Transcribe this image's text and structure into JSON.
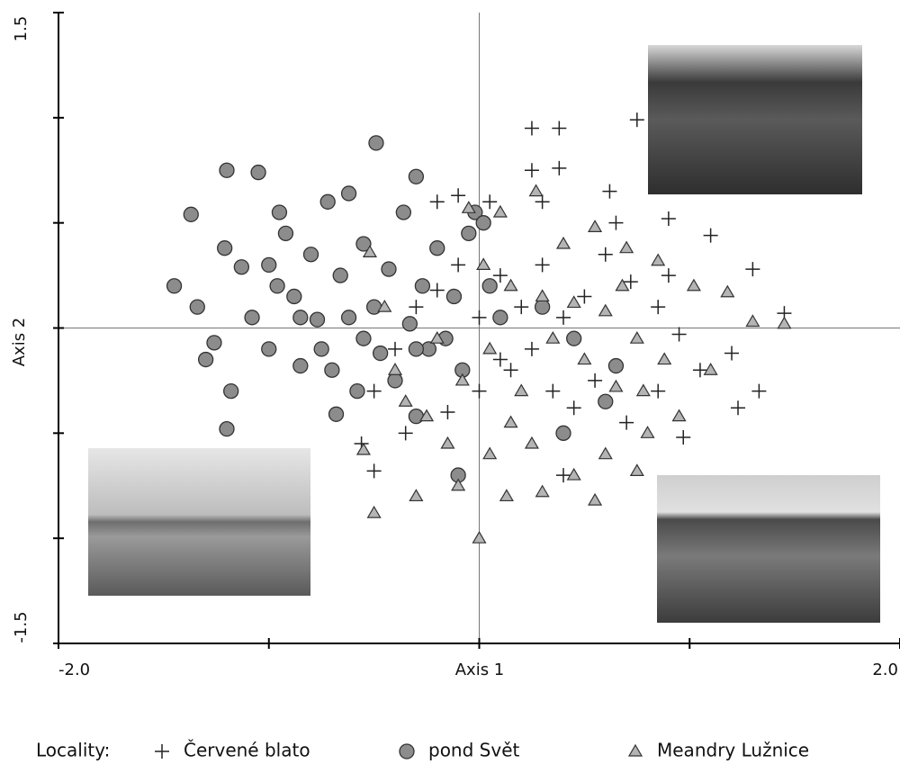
{
  "chart_data": {
    "type": "scatter",
    "x_label": "Axis 1",
    "y_label": "Axis 2",
    "legend_title": "Locality:",
    "xlim": [
      -2.0,
      2.0
    ],
    "ylim": [
      -1.5,
      1.5
    ],
    "xticks": [
      {
        "value": -2.0,
        "label": "-2.0"
      },
      {
        "value": 2.0,
        "label": "2.0"
      }
    ],
    "yticks": [
      {
        "value": -1.5,
        "label": "-1.5"
      },
      {
        "value": 1.5,
        "label": "1.5"
      }
    ],
    "xminor_ticks": [
      -1,
      0,
      1
    ],
    "yminor_ticks": [
      -1,
      -0.5,
      0,
      0.5,
      1
    ],
    "series": [
      {
        "name": "Červené blato",
        "marker": "plus",
        "color": "#222222",
        "x": [
          0.25,
          0.38,
          0.75,
          0.25,
          0.38,
          0.62,
          -0.2,
          -0.1,
          0.05,
          0.3,
          0.65,
          0.9,
          1.1,
          1.3,
          1.45,
          1.2,
          1.33,
          1.23,
          1.05,
          0.95,
          0.85,
          0.72,
          0.6,
          0.5,
          0.4,
          0.3,
          0.2,
          0.1,
          0.0,
          -0.1,
          -0.2,
          -0.3,
          -0.4,
          -0.5,
          -0.56,
          -0.5,
          -0.35,
          -0.15,
          0.0,
          0.15,
          0.25,
          0.35,
          0.45,
          0.55,
          0.7,
          0.85,
          0.97,
          0.9,
          0.4,
          0.1
        ],
        "y": [
          0.95,
          0.95,
          0.99,
          0.75,
          0.76,
          0.65,
          0.6,
          0.63,
          0.6,
          0.6,
          0.5,
          0.52,
          0.44,
          0.28,
          0.07,
          -0.12,
          -0.3,
          -0.38,
          -0.2,
          -0.03,
          0.1,
          0.22,
          0.35,
          0.15,
          0.05,
          0.3,
          0.1,
          0.25,
          0.05,
          0.3,
          0.18,
          0.1,
          -0.1,
          -0.3,
          -0.55,
          -0.68,
          -0.5,
          -0.4,
          -0.3,
          -0.2,
          -0.1,
          -0.3,
          -0.38,
          -0.25,
          -0.45,
          -0.3,
          -0.52,
          0.25,
          -0.7,
          -0.15
        ]
      },
      {
        "name": "pond Svět",
        "marker": "circle",
        "color": "#8c8c8c",
        "x": [
          -1.45,
          -1.37,
          -1.2,
          -1.05,
          -0.49,
          -0.3,
          -1.34,
          -1.3,
          -1.26,
          -1.21,
          -1.13,
          -1.08,
          -1.0,
          -0.96,
          -0.92,
          -0.88,
          -0.85,
          -0.8,
          -0.77,
          -0.72,
          -0.7,
          -0.66,
          -0.62,
          -0.58,
          -0.55,
          -0.5,
          -0.47,
          -0.43,
          -0.4,
          -0.36,
          -0.33,
          -0.3,
          -0.27,
          -0.24,
          -0.2,
          -0.16,
          -0.12,
          -0.08,
          -0.05,
          -0.02,
          0.02,
          0.05,
          0.1,
          -0.1,
          -1.2,
          -0.68,
          -1.18,
          -0.95,
          -0.62,
          -0.75,
          -0.3,
          0.3,
          0.45,
          0.65,
          0.6,
          0.4,
          -1.0,
          -0.85,
          -0.55
        ],
        "y": [
          0.2,
          0.54,
          0.75,
          0.74,
          0.88,
          0.72,
          0.1,
          -0.15,
          -0.07,
          0.38,
          0.29,
          0.05,
          -0.1,
          0.2,
          0.45,
          0.15,
          -0.18,
          0.35,
          0.04,
          0.6,
          -0.2,
          0.25,
          0.05,
          -0.3,
          0.4,
          0.1,
          -0.12,
          0.28,
          -0.25,
          0.55,
          0.02,
          -0.42,
          0.2,
          -0.1,
          0.38,
          -0.05,
          0.15,
          -0.2,
          0.45,
          0.55,
          0.5,
          0.2,
          0.05,
          -0.7,
          -0.48,
          -0.41,
          -0.3,
          0.55,
          0.64,
          -0.1,
          -0.1,
          0.1,
          -0.05,
          -0.18,
          -0.35,
          -0.5,
          0.3,
          0.05,
          -0.05
        ]
      },
      {
        "name": "Meandry Lužnice",
        "marker": "triangle",
        "color": "#b4b4b4",
        "x": [
          1.45,
          1.3,
          1.18,
          1.02,
          0.85,
          0.7,
          0.55,
          0.27,
          0.1,
          -0.05,
          -0.52,
          -0.45,
          -0.4,
          -0.35,
          -0.25,
          -0.15,
          -0.1,
          -0.3,
          -0.5,
          -0.55,
          0.0,
          0.13,
          0.05,
          0.15,
          0.25,
          0.3,
          0.45,
          0.55,
          0.6,
          0.75,
          0.8,
          0.95,
          0.88,
          0.75,
          0.6,
          0.45,
          0.3,
          0.15,
          0.05,
          -0.08,
          0.2,
          0.35,
          0.5,
          0.65,
          0.78,
          0.68,
          1.1,
          0.02,
          0.4,
          -0.2
        ],
        "y": [
          0.02,
          0.03,
          0.17,
          0.2,
          0.32,
          0.38,
          0.48,
          0.65,
          0.55,
          0.57,
          0.36,
          0.1,
          -0.2,
          -0.35,
          -0.42,
          -0.55,
          -0.75,
          -0.8,
          -0.88,
          -0.58,
          -1.0,
          -0.8,
          -0.6,
          -0.45,
          -0.55,
          -0.78,
          -0.7,
          -0.82,
          -0.6,
          -0.68,
          -0.5,
          -0.42,
          -0.15,
          -0.05,
          0.08,
          0.12,
          0.15,
          0.2,
          -0.1,
          -0.25,
          -0.3,
          -0.05,
          -0.15,
          -0.28,
          -0.3,
          0.2,
          -0.2,
          0.3,
          0.4,
          -0.05
        ]
      }
    ]
  }
}
